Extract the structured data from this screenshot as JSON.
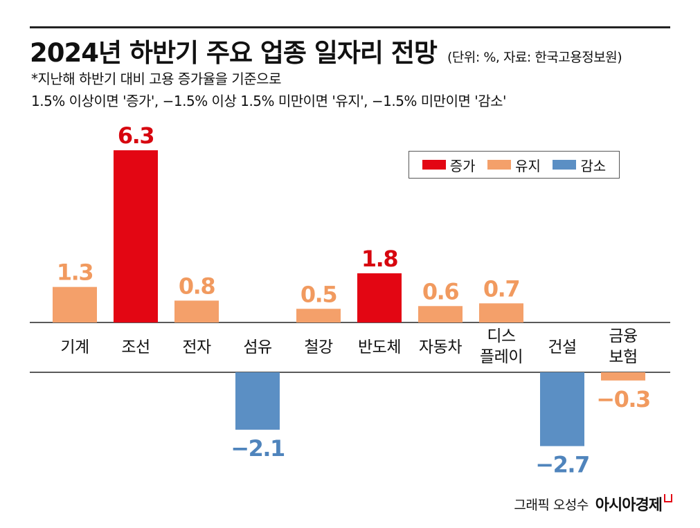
{
  "header": {
    "title": "2024년 하반기 주요 업종 일자리 전망",
    "meta": "(단위: %, 자료: 한국고용정보원)",
    "note_line1": "*지난해 하반기 대비 고용 증가율을 기준으로",
    "note_line2": "1.5% 이상이면 '증가', −1.5% 이상 1.5% 미만이면 '유지', −1.5% 미만이면 '감소'"
  },
  "legend": [
    {
      "label": "증가",
      "color": "#e30613"
    },
    {
      "label": "유지",
      "color": "#f4a06a"
    },
    {
      "label": "감소",
      "color": "#5b8fc4"
    }
  ],
  "chart_data": {
    "type": "bar",
    "categories": [
      [
        "기계"
      ],
      [
        "조선"
      ],
      [
        "전자"
      ],
      [
        "섬유"
      ],
      [
        "철강"
      ],
      [
        "반도체"
      ],
      [
        "자동차"
      ],
      [
        "디스",
        "플레이"
      ],
      [
        "건설"
      ],
      [
        "금융",
        "보험"
      ]
    ],
    "values": [
      1.3,
      6.3,
      0.8,
      -2.1,
      0.5,
      1.8,
      0.6,
      0.7,
      -2.7,
      -0.3
    ],
    "value_labels": [
      "1.3",
      "6.3",
      "0.8",
      "−2.1",
      "0.5",
      "1.8",
      "0.6",
      "0.7",
      "−2.7",
      "−0.3"
    ],
    "status": [
      "유지",
      "증가",
      "유지",
      "감소",
      "유지",
      "증가",
      "유지",
      "유지",
      "감소",
      "유지"
    ],
    "colors": {
      "증가": "#e30613",
      "유지": "#f4a06a",
      "감소": "#5b8fc4"
    },
    "label_colors": {
      "증가": "#d7060f",
      "유지": "#f19a5f",
      "감소": "#4f84bc"
    }
  },
  "credit": {
    "text": "그래픽 오성수",
    "brand": "아시아경제"
  }
}
